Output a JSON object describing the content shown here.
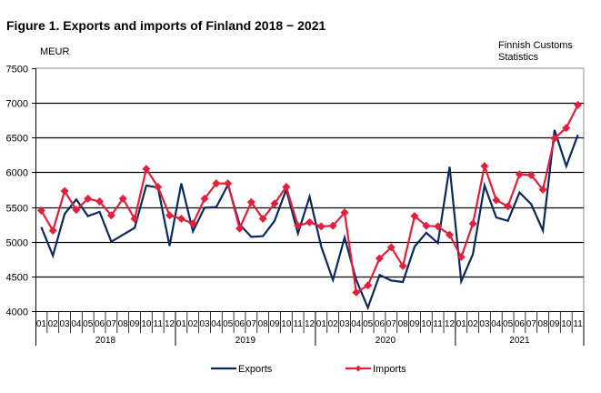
{
  "chart_data": {
    "type": "line",
    "title": "Figure 1. Exports and imports of Finland 2018 − 2021",
    "ylabel": "MEUR",
    "xlabel": "",
    "source_note": [
      "Finnish Customs",
      "Statistics"
    ],
    "ylim": [
      4000,
      7500
    ],
    "yticks": [
      4000,
      4500,
      5000,
      5500,
      6000,
      6500,
      7000,
      7500
    ],
    "grid": true,
    "legend_position": "bottom",
    "years": [
      {
        "label": "2018",
        "months": 12
      },
      {
        "label": "2019",
        "months": 12
      },
      {
        "label": "2020",
        "months": 12
      },
      {
        "label": "2021",
        "months": 11
      }
    ],
    "x": [
      "01",
      "02",
      "03",
      "04",
      "05",
      "06",
      "07",
      "08",
      "09",
      "10",
      "11",
      "12",
      "01",
      "02",
      "03",
      "04",
      "05",
      "06",
      "07",
      "08",
      "09",
      "10",
      "11",
      "12",
      "01",
      "02",
      "03",
      "04",
      "05",
      "06",
      "07",
      "08",
      "09",
      "10",
      "11",
      "12",
      "01",
      "02",
      "03",
      "04",
      "05",
      "06",
      "07",
      "08",
      "09",
      "10",
      "11"
    ],
    "series": [
      {
        "name": "Exports",
        "color": "#0a2a5c",
        "marker": "none",
        "values": [
          5210,
          4800,
          5400,
          5610,
          5370,
          5430,
          5000,
          5100,
          5200,
          5810,
          5780,
          4940,
          5840,
          5150,
          5490,
          5500,
          5820,
          5250,
          5070,
          5080,
          5300,
          5750,
          5120,
          5650,
          4930,
          4450,
          5060,
          4450,
          4050,
          4520,
          4440,
          4420,
          4930,
          5130,
          4980,
          6080,
          4430,
          4820,
          5810,
          5350,
          5300,
          5710,
          5540,
          5160,
          6610,
          6090,
          6540
        ]
      },
      {
        "name": "Imports",
        "color": "#e0203c",
        "marker": "diamond",
        "values": [
          5450,
          5160,
          5730,
          5460,
          5620,
          5580,
          5380,
          5620,
          5330,
          6050,
          5790,
          5380,
          5330,
          5260,
          5620,
          5840,
          5840,
          5190,
          5570,
          5330,
          5550,
          5790,
          5230,
          5280,
          5220,
          5230,
          5420,
          4270,
          4370,
          4760,
          4920,
          4650,
          5370,
          5230,
          5220,
          5100,
          4780,
          5260,
          6090,
          5600,
          5510,
          5970,
          5960,
          5750,
          6490,
          6640,
          6970
        ]
      }
    ]
  }
}
